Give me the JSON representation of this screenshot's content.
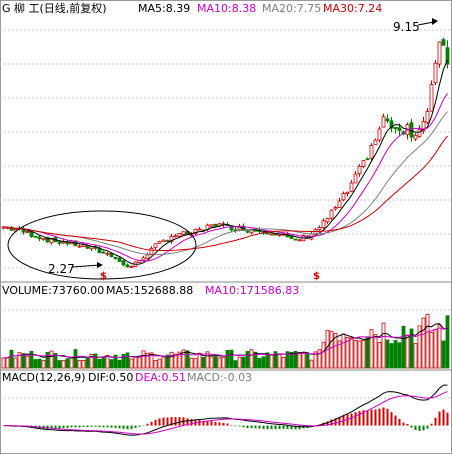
{
  "price_panel": {
    "title": "G 柳  工(日线,前复权)",
    "ma5": "MA5:8.39",
    "ma10": "MA10:8.38",
    "ma20": "MA20:7.75",
    "ma30": "MA30:7.24",
    "annot_high": "9.15",
    "annot_low": "2.27",
    "event_marker": "$",
    "colors": {
      "up": "#d00000",
      "down": "#008000",
      "ma5": "#000000",
      "ma10": "#cc00cc",
      "ma20": "#808080",
      "ma30": "#cc0000"
    }
  },
  "volume_panel": {
    "vol": "VOLUME:73760.00",
    "ma5": "MA5:152688.88",
    "ma10": "MA10:171586.83"
  },
  "macd_panel": {
    "params": "MACD(12,26,9)",
    "dif": "DIF:0.50",
    "dea": "DEA:0.51",
    "macd": "MACD:-0.03"
  },
  "chart_data": {
    "type": "candlestick",
    "ylim": [
      2.0,
      9.4
    ],
    "grid": true,
    "close_path": [
      [
        0,
        3.4
      ],
      [
        4,
        3.3
      ],
      [
        8,
        3.15
      ],
      [
        12,
        3.0
      ],
      [
        16,
        2.95
      ],
      [
        20,
        2.85
      ],
      [
        24,
        2.7
      ],
      [
        28,
        2.55
      ],
      [
        30,
        2.3
      ],
      [
        32,
        2.27
      ],
      [
        34,
        2.45
      ],
      [
        38,
        2.85
      ],
      [
        42,
        3.15
      ],
      [
        46,
        3.2
      ],
      [
        50,
        3.3
      ],
      [
        52,
        3.5
      ],
      [
        56,
        3.4
      ],
      [
        60,
        3.35
      ],
      [
        64,
        3.3
      ],
      [
        68,
        3.25
      ],
      [
        70,
        3.15
      ],
      [
        72,
        3.0
      ],
      [
        74,
        3.05
      ],
      [
        76,
        3.15
      ],
      [
        78,
        3.3
      ],
      [
        80,
        3.5
      ],
      [
        82,
        3.8
      ],
      [
        84,
        4.1
      ],
      [
        86,
        4.4
      ],
      [
        88,
        4.8
      ],
      [
        90,
        5.2
      ],
      [
        92,
        5.7
      ],
      [
        94,
        6.1
      ],
      [
        95,
        6.55
      ],
      [
        96,
        6.35
      ],
      [
        97,
        6.25
      ],
      [
        98,
        6.05
      ],
      [
        99,
        6.25
      ],
      [
        100,
        6.15
      ],
      [
        101,
        6.3
      ],
      [
        102,
        6.1
      ],
      [
        103,
        6.0
      ],
      [
        104,
        6.2
      ],
      [
        105,
        6.35
      ],
      [
        106,
        6.6
      ],
      [
        107,
        7.3
      ],
      [
        108,
        8.1
      ],
      [
        109,
        8.8
      ],
      [
        110,
        8.6
      ],
      [
        111,
        8.0
      ]
    ],
    "volume_ylim": [
      0,
      380000
    ],
    "macd_ylim": [
      -0.6,
      0.9
    ]
  }
}
